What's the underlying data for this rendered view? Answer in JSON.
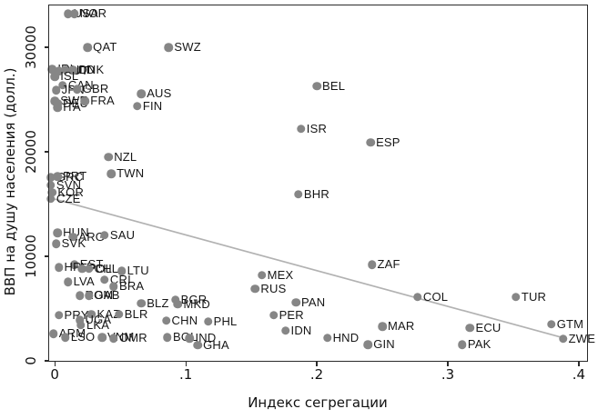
{
  "chart_data": {
    "type": "scatter",
    "title": "",
    "xlabel": "Индекс сегрегации",
    "ylabel": "ВВП на душу населения (долл.)",
    "xlim": [
      -0.005,
      0.407
    ],
    "ylim": [
      -90,
      34090
    ],
    "grid": false,
    "legend": "none",
    "marker_color": "#868686",
    "label_color": "#161616",
    "trend_line_color": "#b2b2b2",
    "axis_color": "#2a2a2a",
    "x_ticks": [
      {
        "value": 0,
        "label": "0"
      },
      {
        "value": 0.1,
        "label": ".1"
      },
      {
        "value": 0.2,
        "label": ".2"
      },
      {
        "value": 0.3,
        "label": ".3"
      },
      {
        "value": 0.4,
        "label": ".4"
      }
    ],
    "y_ticks": [
      {
        "value": 0,
        "label": "0"
      },
      {
        "value": 10000,
        "label": "10000"
      },
      {
        "value": 20000,
        "label": "20000"
      },
      {
        "value": 30000,
        "label": "30000"
      }
    ],
    "trend_line": {
      "x1": -0.004,
      "y1": 15600,
      "x2": 0.391,
      "y2": 2100
    },
    "points": [
      {
        "code": "USA",
        "x": 0.01,
        "y": 33200
      },
      {
        "code": "NOR",
        "x": 0.015,
        "y": 33200
      },
      {
        "code": "QAT",
        "x": 0.025,
        "y": 30000
      },
      {
        "code": "SWZ",
        "x": 0.087,
        "y": 30000
      },
      {
        "code": "IRL",
        "x": -0.002,
        "y": 27900
      },
      {
        "code": "AUT",
        "x": 0.003,
        "y": 27700
      },
      {
        "code": "NLD",
        "x": 0.008,
        "y": 27850
      },
      {
        "code": "DNK",
        "x": 0.014,
        "y": 27800
      },
      {
        "code": "ISL",
        "x": 0.0,
        "y": 27200
      },
      {
        "code": "CAN",
        "x": 0.006,
        "y": 26350
      },
      {
        "code": "JPN",
        "x": 0.001,
        "y": 25900
      },
      {
        "code": "GBR",
        "x": 0.017,
        "y": 26000
      },
      {
        "code": "AUS",
        "x": 0.066,
        "y": 25550
      },
      {
        "code": "SWE",
        "x": 0.0,
        "y": 24850
      },
      {
        "code": "DEU",
        "x": 0.002,
        "y": 24650
      },
      {
        "code": "FRA",
        "x": 0.023,
        "y": 24850
      },
      {
        "code": "FIN",
        "x": 0.063,
        "y": 24350
      },
      {
        "code": "ITA",
        "x": 0.002,
        "y": 24250
      },
      {
        "code": "NZL",
        "x": 0.041,
        "y": 19500
      },
      {
        "code": "TWN",
        "x": 0.043,
        "y": 17900
      },
      {
        "code": "GRC",
        "x": -0.003,
        "y": 17550
      },
      {
        "code": "PRT",
        "x": 0.002,
        "y": 17650
      },
      {
        "code": "SVN",
        "x": -0.003,
        "y": 16800
      },
      {
        "code": "KOR",
        "x": -0.002,
        "y": 16100
      },
      {
        "code": "CZE",
        "x": -0.003,
        "y": 15500
      },
      {
        "code": "BHR",
        "x": 0.186,
        "y": 15950
      },
      {
        "code": "ISR",
        "x": 0.188,
        "y": 22200
      },
      {
        "code": "ESP",
        "x": 0.241,
        "y": 20900
      },
      {
        "code": "BEL",
        "x": 0.2,
        "y": 26300
      },
      {
        "code": "HUN",
        "x": 0.002,
        "y": 12250
      },
      {
        "code": "ARG",
        "x": 0.014,
        "y": 11850
      },
      {
        "code": "SAU",
        "x": 0.038,
        "y": 12000
      },
      {
        "code": "SVK",
        "x": 0.001,
        "y": 11200
      },
      {
        "code": "EST",
        "x": 0.015,
        "y": 9200
      },
      {
        "code": "HRV",
        "x": 0.003,
        "y": 8950
      },
      {
        "code": "POL",
        "x": 0.021,
        "y": 8800
      },
      {
        "code": "CHL",
        "x": 0.026,
        "y": 8800
      },
      {
        "code": "LTU",
        "x": 0.051,
        "y": 8600
      },
      {
        "code": "LVA",
        "x": 0.01,
        "y": 7550
      },
      {
        "code": "CRI",
        "x": 0.038,
        "y": 7750
      },
      {
        "code": "BRA",
        "x": 0.045,
        "y": 7100
      },
      {
        "code": "ROM",
        "x": 0.019,
        "y": 6250
      },
      {
        "code": "GAB",
        "x": 0.026,
        "y": 6250
      },
      {
        "code": "BLZ",
        "x": 0.066,
        "y": 5500
      },
      {
        "code": "BGR",
        "x": 0.092,
        "y": 5850
      },
      {
        "code": "MKD",
        "x": 0.094,
        "y": 5400
      },
      {
        "code": "PRY",
        "x": 0.003,
        "y": 4350
      },
      {
        "code": "KAZ",
        "x": 0.028,
        "y": 4450
      },
      {
        "code": "BLR",
        "x": 0.049,
        "y": 4450
      },
      {
        "code": "UGA",
        "x": 0.019,
        "y": 3900
      },
      {
        "code": "LKA",
        "x": 0.02,
        "y": 3400
      },
      {
        "code": "CHN",
        "x": 0.085,
        "y": 3850
      },
      {
        "code": "PHL",
        "x": 0.117,
        "y": 3750
      },
      {
        "code": "ARM",
        "x": -0.001,
        "y": 2600
      },
      {
        "code": "LSO",
        "x": 0.008,
        "y": 2250
      },
      {
        "code": "VNM",
        "x": 0.036,
        "y": 2250
      },
      {
        "code": "OMR",
        "x": 0.045,
        "y": 2150
      },
      {
        "code": "BOL",
        "x": 0.086,
        "y": 2250
      },
      {
        "code": "IND",
        "x": 0.103,
        "y": 2150
      },
      {
        "code": "GHA",
        "x": 0.109,
        "y": 1500
      },
      {
        "code": "MEX",
        "x": 0.158,
        "y": 8200
      },
      {
        "code": "RUS",
        "x": 0.153,
        "y": 6900
      },
      {
        "code": "PAN",
        "x": 0.184,
        "y": 5600
      },
      {
        "code": "PER",
        "x": 0.167,
        "y": 4350
      },
      {
        "code": "IDN",
        "x": 0.176,
        "y": 2900
      },
      {
        "code": "HND",
        "x": 0.208,
        "y": 2200
      },
      {
        "code": "GIN",
        "x": 0.239,
        "y": 1550
      },
      {
        "code": "ZAF",
        "x": 0.242,
        "y": 9200
      },
      {
        "code": "COL",
        "x": 0.277,
        "y": 6100
      },
      {
        "code": "TUR",
        "x": 0.352,
        "y": 6100
      },
      {
        "code": "MAR",
        "x": 0.25,
        "y": 3300
      },
      {
        "code": "ECU",
        "x": 0.317,
        "y": 3150
      },
      {
        "code": "PAK",
        "x": 0.311,
        "y": 1550
      },
      {
        "code": "GTM",
        "x": 0.379,
        "y": 3500
      },
      {
        "code": "ZWE",
        "x": 0.388,
        "y": 2100
      }
    ]
  }
}
